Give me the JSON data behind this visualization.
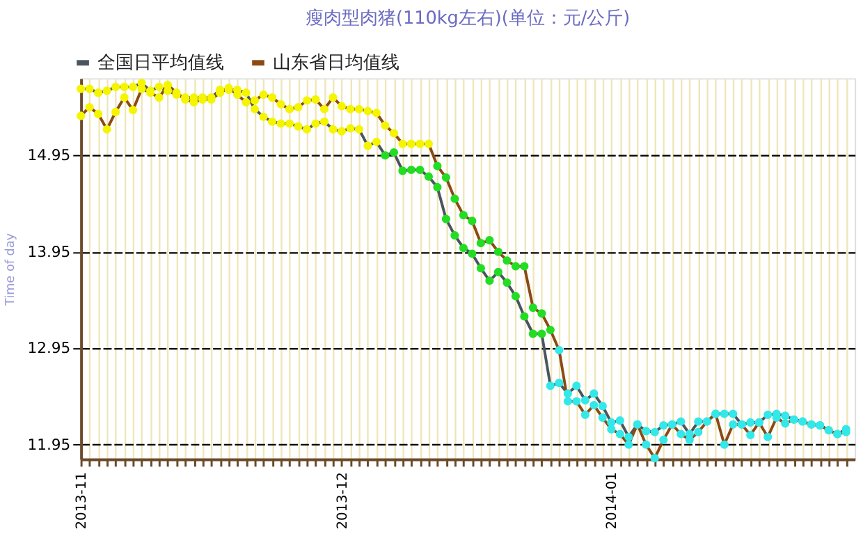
{
  "chart_data": {
    "type": "line",
    "title": "瘦肉型肉猪(110kg左右)(单位：元/公斤)",
    "ylabel": "Time of day",
    "x": [
      "2013-11-01",
      "2013-11-02",
      "2013-11-03",
      "2013-11-04",
      "2013-11-05",
      "2013-11-06",
      "2013-11-07",
      "2013-11-08",
      "2013-11-09",
      "2013-11-10",
      "2013-11-11",
      "2013-11-12",
      "2013-11-13",
      "2013-11-14",
      "2013-11-15",
      "2013-11-16",
      "2013-11-17",
      "2013-11-18",
      "2013-11-19",
      "2013-11-20",
      "2013-11-21",
      "2013-11-22",
      "2013-11-23",
      "2013-11-24",
      "2013-11-25",
      "2013-11-26",
      "2013-11-27",
      "2013-11-28",
      "2013-11-29",
      "2013-11-30",
      "2013-12-01",
      "2013-12-02",
      "2013-12-03",
      "2013-12-04",
      "2013-12-05",
      "2013-12-06",
      "2013-12-07",
      "2013-12-08",
      "2013-12-09",
      "2013-12-10",
      "2013-12-11",
      "2013-12-12",
      "2013-12-13",
      "2013-12-14",
      "2013-12-15",
      "2013-12-16",
      "2013-12-17",
      "2013-12-18",
      "2013-12-19",
      "2013-12-20",
      "2013-12-21",
      "2013-12-22",
      "2013-12-23",
      "2013-12-24",
      "2013-12-25",
      "2013-12-26",
      "2013-12-27",
      "2013-12-28",
      "2013-12-29",
      "2013-12-30",
      "2013-12-31",
      "2014-01-01",
      "2014-01-02",
      "2014-01-03",
      "2014-01-04",
      "2014-01-05",
      "2014-01-06",
      "2014-01-07",
      "2014-01-08",
      "2014-01-09",
      "2014-01-10",
      "2014-01-11",
      "2014-01-12",
      "2014-01-13",
      "2014-01-14",
      "2014-01-15",
      "2014-01-16",
      "2014-01-17",
      "2014-01-18",
      "2014-01-19",
      "2014-01-20",
      "2014-01-21",
      "2014-01-22",
      "2014-01-23",
      "2014-01-24",
      "2014-01-25",
      "2014-01-26",
      "2014-01-27",
      "2014-01-28"
    ],
    "series": [
      {
        "name": "全国日平均值线",
        "color": "#4a5560",
        "values": [
          15.64,
          15.64,
          15.6,
          15.62,
          15.66,
          15.66,
          15.66,
          15.7,
          15.62,
          15.66,
          15.62,
          15.58,
          15.55,
          15.55,
          15.55,
          15.55,
          15.63,
          15.63,
          15.63,
          15.6,
          15.43,
          15.35,
          15.3,
          15.28,
          15.28,
          15.25,
          15.22,
          15.28,
          15.3,
          15.22,
          15.2,
          15.23,
          15.22,
          15.05,
          15.09,
          14.95,
          14.98,
          14.79,
          14.8,
          14.8,
          14.73,
          14.62,
          14.29,
          14.12,
          13.99,
          13.93,
          13.78,
          13.65,
          13.74,
          13.63,
          13.49,
          13.28,
          13.1,
          13.1,
          12.56,
          12.59,
          12.48,
          12.56,
          12.41,
          12.48,
          12.35,
          12.18,
          12.2,
          12.03,
          12.16,
          12.09,
          12.08,
          12.15,
          12.16,
          12.19,
          12.06,
          12.19,
          12.19,
          12.27,
          12.27,
          12.27,
          12.16,
          12.18,
          12.18,
          12.26,
          12.27,
          12.25,
          12.21,
          12.19,
          12.16,
          12.15,
          12.1,
          12.06,
          12.11
        ],
        "colors": [
          "#f5f500",
          "#f5f500",
          "#f5f500",
          "#f5f500",
          "#f5f500",
          "#f5f500",
          "#f5f500",
          "#f5f500",
          "#f5f500",
          "#f5f500",
          "#f5f500",
          "#f5f500",
          "#f5f500",
          "#f5f500",
          "#f5f500",
          "#f5f500",
          "#f5f500",
          "#f5f500",
          "#f5f500",
          "#f5f500",
          "#f5f500",
          "#f5f500",
          "#f5f500",
          "#f5f500",
          "#f5f500",
          "#f5f500",
          "#f5f500",
          "#f5f500",
          "#f5f500",
          "#f5f500",
          "#f5f500",
          "#f5f500",
          "#f5f500",
          "#f5f500",
          "#f5f500",
          "#22dd22",
          "#22dd22",
          "#22dd22",
          "#22dd22",
          "#22dd22",
          "#22dd22",
          "#22dd22",
          "#22dd22",
          "#22dd22",
          "#22dd22",
          "#22dd22",
          "#22dd22",
          "#22dd22",
          "#22dd22",
          "#22dd22",
          "#22dd22",
          "#22dd22",
          "#22dd22",
          "#22dd22",
          "#33e8e8",
          "#33e8e8",
          "#33e8e8",
          "#33e8e8",
          "#33e8e8",
          "#33e8e8",
          "#33e8e8",
          "#33e8e8",
          "#33e8e8",
          "#33e8e8",
          "#33e8e8",
          "#33e8e8",
          "#33e8e8",
          "#33e8e8",
          "#33e8e8",
          "#33e8e8",
          "#33e8e8",
          "#33e8e8",
          "#33e8e8",
          "#33e8e8",
          "#33e8e8",
          "#33e8e8",
          "#33e8e8",
          "#33e8e8",
          "#33e8e8",
          "#33e8e8",
          "#33e8e8",
          "#33e8e8",
          "#33e8e8",
          "#33e8e8",
          "#33e8e8",
          "#33e8e8",
          "#33e8e8",
          "#33e8e8",
          "#33e8e8"
        ]
      },
      {
        "name": "山东省日均值线",
        "color": "#8b4a14",
        "values": [
          15.36,
          15.45,
          15.38,
          15.22,
          15.4,
          15.55,
          15.42,
          15.64,
          15.6,
          15.55,
          15.68,
          15.6,
          15.53,
          15.5,
          15.53,
          15.53,
          15.6,
          15.65,
          15.58,
          15.5,
          15.52,
          15.58,
          15.55,
          15.48,
          15.43,
          15.45,
          15.52,
          15.53,
          15.43,
          15.55,
          15.46,
          15.43,
          15.43,
          15.41,
          15.39,
          15.26,
          15.18,
          15.07,
          15.07,
          15.07,
          15.07,
          14.84,
          14.72,
          14.5,
          14.33,
          14.27,
          14.04,
          14.07,
          13.95,
          13.86,
          13.8,
          13.8,
          13.37,
          13.31,
          13.14,
          12.93,
          12.4,
          12.4,
          12.26,
          12.36,
          12.23,
          12.11,
          12.06,
          11.95,
          12.16,
          11.95,
          11.81,
          12.0,
          12.16,
          12.06,
          12.0,
          12.08,
          12.19,
          12.27,
          11.95,
          12.16,
          12.16,
          12.05,
          12.18,
          12.03,
          12.23,
          12.17,
          12.21,
          12.19,
          12.16,
          12.15,
          12.1,
          12.06,
          12.08
        ],
        "colors": [
          "#f5f500",
          "#f5f500",
          "#f5f500",
          "#f5f500",
          "#f5f500",
          "#f5f500",
          "#f5f500",
          "#f5f500",
          "#f5f500",
          "#f5f500",
          "#f5f500",
          "#f5f500",
          "#f5f500",
          "#f5f500",
          "#f5f500",
          "#f5f500",
          "#f5f500",
          "#f5f500",
          "#f5f500",
          "#f5f500",
          "#f5f500",
          "#f5f500",
          "#f5f500",
          "#f5f500",
          "#f5f500",
          "#f5f500",
          "#f5f500",
          "#f5f500",
          "#f5f500",
          "#f5f500",
          "#f5f500",
          "#f5f500",
          "#f5f500",
          "#f5f500",
          "#f5f500",
          "#f5f500",
          "#f5f500",
          "#f5f500",
          "#f5f500",
          "#f5f500",
          "#f5f500",
          "#22dd22",
          "#22dd22",
          "#22dd22",
          "#22dd22",
          "#22dd22",
          "#22dd22",
          "#22dd22",
          "#22dd22",
          "#22dd22",
          "#22dd22",
          "#22dd22",
          "#22dd22",
          "#22dd22",
          "#22dd22",
          "#33e8e8",
          "#33e8e8",
          "#33e8e8",
          "#33e8e8",
          "#33e8e8",
          "#33e8e8",
          "#33e8e8",
          "#33e8e8",
          "#33e8e8",
          "#33e8e8",
          "#33e8e8",
          "#33e8e8",
          "#33e8e8",
          "#33e8e8",
          "#33e8e8",
          "#33e8e8",
          "#33e8e8",
          "#33e8e8",
          "#33e8e8",
          "#33e8e8",
          "#33e8e8",
          "#33e8e8",
          "#33e8e8",
          "#33e8e8",
          "#33e8e8",
          "#33e8e8",
          "#33e8e8",
          "#33e8e8",
          "#33e8e8",
          "#33e8e8",
          "#33e8e8",
          "#33e8e8",
          "#33e8e8",
          "#33e8e8"
        ]
      }
    ],
    "xlim": [
      "2013-11-01",
      "2014-01-29"
    ],
    "ylim": [
      11.8,
      15.75
    ],
    "yticks": [
      11.95,
      12.95,
      13.95,
      14.95
    ],
    "xticks": [
      "2013-11",
      {
        "value": "2013-11-02",
        "label": null
      },
      {
        "value": "2013-11-03",
        "label": null
      },
      {
        "value": "2013-11-04",
        "label": null
      },
      {
        "value": "2013-11-05",
        "label": null
      },
      {
        "value": "2013-11-06",
        "label": null
      },
      {
        "value": "2013-11-07",
        "label": null
      },
      {
        "value": "2013-11-08",
        "label": null
      },
      {
        "value": "2013-11-09",
        "label": null
      },
      {
        "value": "2013-11-10",
        "label": null
      },
      {
        "value": "2013-11-11",
        "label": null
      },
      {
        "value": "2013-11-12",
        "label": null
      },
      {
        "value": "2013-11-13",
        "label": null
      },
      {
        "value": "2013-11-14",
        "label": null
      },
      {
        "value": "2013-11-15",
        "label": null
      },
      {
        "value": "2013-11-16",
        "label": null
      },
      {
        "value": "2013-11-17",
        "label": null
      },
      {
        "value": "2013-11-18",
        "label": null
      },
      {
        "value": "2013-11-19",
        "label": null
      },
      {
        "value": "2013-11-20",
        "label": null
      },
      {
        "value": "2013-11-21",
        "label": null
      },
      {
        "value": "2013-11-22",
        "label": null
      },
      {
        "value": "2013-11-23",
        "label": null
      },
      {
        "value": "2013-11-24",
        "label": null
      },
      {
        "value": "2013-11-25",
        "label": null
      },
      {
        "value": "2013-11-26",
        "label": null
      },
      {
        "value": "2013-11-27",
        "label": null
      },
      {
        "value": "2013-11-28",
        "label": null
      },
      {
        "value": "2013-11-29",
        "label": null
      },
      {
        "value": "2013-11-30",
        "label": null
      },
      "2013-12",
      {
        "value": "2013-12-02",
        "label": null
      },
      {
        "value": "2013-12-03",
        "label": null
      },
      {
        "value": "2013-12-04",
        "label": null
      },
      {
        "value": "2013-12-05",
        "label": null
      },
      {
        "value": "2013-12-06",
        "label": null
      },
      {
        "value": "2013-12-07",
        "label": null
      },
      {
        "value": "2013-12-08",
        "label": null
      },
      {
        "value": "2013-12-09",
        "label": null
      },
      {
        "value": "2013-12-10",
        "label": null
      },
      {
        "value": "2013-12-11",
        "label": null
      },
      {
        "value": "2013-12-12",
        "label": null
      },
      {
        "value": "2013-12-13",
        "label": null
      },
      {
        "value": "2013-12-14",
        "label": null
      },
      {
        "value": "2013-12-15",
        "label": null
      },
      {
        "value": "2013-12-16",
        "label": null
      },
      {
        "value": "2013-12-17",
        "label": null
      },
      {
        "value": "2013-12-18",
        "label": null
      },
      {
        "value": "2013-12-19",
        "label": null
      },
      {
        "value": "2013-12-20",
        "label": null
      },
      {
        "value": "2013-12-21",
        "label": null
      },
      {
        "value": "2013-12-22",
        "label": null
      },
      {
        "value": "2013-12-23",
        "label": null
      },
      {
        "value": "2013-12-24",
        "label": null
      },
      {
        "value": "2013-12-25",
        "label": null
      },
      {
        "value": "2013-12-26",
        "label": null
      },
      {
        "value": "2013-12-27",
        "label": null
      },
      {
        "value": "2013-12-28",
        "label": null
      },
      {
        "value": "2013-12-29",
        "label": null
      },
      {
        "value": "2013-12-30",
        "label": null
      },
      {
        "value": "2013-12-31",
        "label": null
      },
      "2014-01",
      {
        "value": "2014-01-02",
        "label": null
      },
      {
        "value": "2014-01-03",
        "label": null
      },
      {
        "value": "2014-01-04",
        "label": null
      },
      {
        "value": "2014-01-05",
        "label": null
      },
      {
        "value": "2014-01-06",
        "label": null
      },
      {
        "value": "2014-01-07",
        "label": null
      },
      {
        "value": "2014-01-08",
        "label": null
      },
      {
        "value": "2014-01-09",
        "label": null
      },
      {
        "value": "2014-01-10",
        "label": null
      },
      {
        "value": "2014-01-11",
        "label": null
      },
      {
        "value": "2014-01-12",
        "label": null
      },
      {
        "value": "2014-01-13",
        "label": null
      },
      {
        "value": "2014-01-14",
        "label": null
      },
      {
        "value": "2014-01-15",
        "label": null
      },
      {
        "value": "2014-01-16",
        "label": null
      },
      {
        "value": "2014-01-17",
        "label": null
      },
      {
        "value": "2014-01-18",
        "label": null
      },
      {
        "value": "2014-01-19",
        "label": null
      },
      {
        "value": "2014-01-20",
        "label": null
      },
      {
        "value": "2014-01-21",
        "label": null
      },
      {
        "value": "2014-01-22",
        "label": null
      },
      {
        "value": "2014-01-23",
        "label": null
      },
      {
        "value": "2014-01-24",
        "label": null
      },
      {
        "value": "2014-01-25",
        "label": null
      },
      {
        "value": "2014-01-26",
        "label": null
      },
      {
        "value": "2014-01-27",
        "label": null
      },
      {
        "value": "2014-01-28",
        "label": null
      }
    ],
    "grid": true,
    "legend": "top left",
    "marker": "circle",
    "line_style": "solid"
  }
}
